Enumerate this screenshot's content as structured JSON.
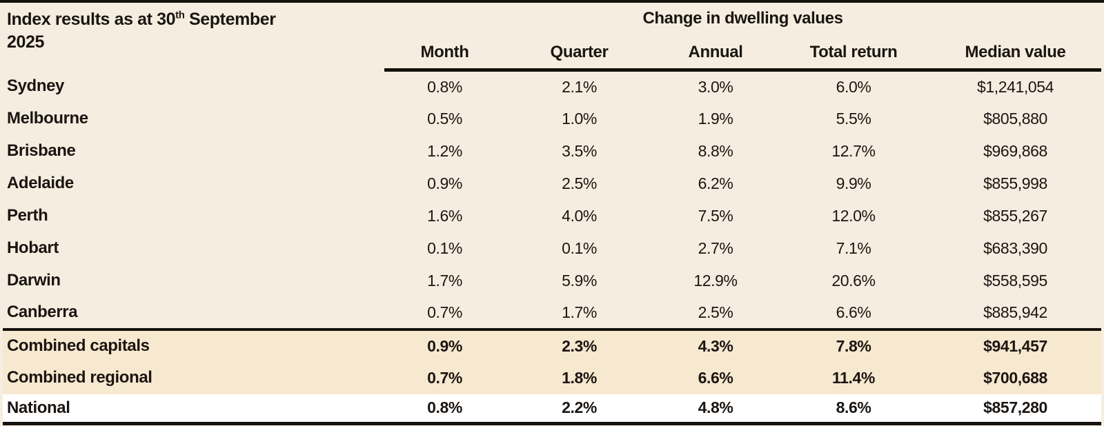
{
  "colors": {
    "page_background": "#f5eee0",
    "summary_row_background": "#f7e9d0",
    "national_row_background": "#ffffff",
    "ink": "#1b1511",
    "rule": "#14100c"
  },
  "table": {
    "title": {
      "line1_pre": "Index results as at 30",
      "line1_sup": "th",
      "line1_post": " September",
      "line2": "2025"
    },
    "group_header": "Change in dwelling values",
    "columns": [
      "Month",
      "Quarter",
      "Annual",
      "Total return",
      "Median value"
    ],
    "rows": [
      {
        "label": "Sydney",
        "type": "city",
        "cells": [
          "0.8%",
          "2.1%",
          "3.0%",
          "6.0%",
          "$1,241,054"
        ]
      },
      {
        "label": "Melbourne",
        "type": "city",
        "cells": [
          "0.5%",
          "1.0%",
          "1.9%",
          "5.5%",
          "$805,880"
        ]
      },
      {
        "label": "Brisbane",
        "type": "city",
        "cells": [
          "1.2%",
          "3.5%",
          "8.8%",
          "12.7%",
          "$969,868"
        ]
      },
      {
        "label": "Adelaide",
        "type": "city",
        "cells": [
          "0.9%",
          "2.5%",
          "6.2%",
          "9.9%",
          "$855,998"
        ]
      },
      {
        "label": "Perth",
        "type": "city",
        "cells": [
          "1.6%",
          "4.0%",
          "7.5%",
          "12.0%",
          "$855,267"
        ]
      },
      {
        "label": "Hobart",
        "type": "city",
        "cells": [
          "0.1%",
          "0.1%",
          "2.7%",
          "7.1%",
          "$683,390"
        ]
      },
      {
        "label": "Darwin",
        "type": "city",
        "cells": [
          "1.7%",
          "5.9%",
          "12.9%",
          "20.6%",
          "$558,595"
        ]
      },
      {
        "label": "Canberra",
        "type": "city",
        "cells": [
          "0.7%",
          "1.7%",
          "2.5%",
          "6.6%",
          "$885,942"
        ]
      },
      {
        "label": "Combined capitals",
        "type": "summary",
        "cells": [
          "0.9%",
          "2.3%",
          "4.3%",
          "7.8%",
          "$941,457"
        ]
      },
      {
        "label": "Combined regional",
        "type": "summary",
        "cells": [
          "0.7%",
          "1.8%",
          "6.6%",
          "11.4%",
          "$700,688"
        ]
      },
      {
        "label": "National",
        "type": "national",
        "cells": [
          "0.8%",
          "2.2%",
          "4.8%",
          "8.6%",
          "$857,280"
        ]
      }
    ]
  },
  "chart_data": {
    "type": "table",
    "title": "Index results as at 30th September 2025",
    "group_header": "Change in dwelling values",
    "columns": [
      "Month",
      "Quarter",
      "Annual",
      "Total return",
      "Median value"
    ],
    "rows": [
      {
        "label": "Sydney",
        "month_pct": 0.8,
        "quarter_pct": 2.1,
        "annual_pct": 3.0,
        "total_return_pct": 6.0,
        "median_value": 1241054
      },
      {
        "label": "Melbourne",
        "month_pct": 0.5,
        "quarter_pct": 1.0,
        "annual_pct": 1.9,
        "total_return_pct": 5.5,
        "median_value": 805880
      },
      {
        "label": "Brisbane",
        "month_pct": 1.2,
        "quarter_pct": 3.5,
        "annual_pct": 8.8,
        "total_return_pct": 12.7,
        "median_value": 969868
      },
      {
        "label": "Adelaide",
        "month_pct": 0.9,
        "quarter_pct": 2.5,
        "annual_pct": 6.2,
        "total_return_pct": 9.9,
        "median_value": 855998
      },
      {
        "label": "Perth",
        "month_pct": 1.6,
        "quarter_pct": 4.0,
        "annual_pct": 7.5,
        "total_return_pct": 12.0,
        "median_value": 855267
      },
      {
        "label": "Hobart",
        "month_pct": 0.1,
        "quarter_pct": 0.1,
        "annual_pct": 2.7,
        "total_return_pct": 7.1,
        "median_value": 683390
      },
      {
        "label": "Darwin",
        "month_pct": 1.7,
        "quarter_pct": 5.9,
        "annual_pct": 12.9,
        "total_return_pct": 20.6,
        "median_value": 558595
      },
      {
        "label": "Canberra",
        "month_pct": 0.7,
        "quarter_pct": 1.7,
        "annual_pct": 2.5,
        "total_return_pct": 6.6,
        "median_value": 885942
      },
      {
        "label": "Combined capitals",
        "month_pct": 0.9,
        "quarter_pct": 2.3,
        "annual_pct": 4.3,
        "total_return_pct": 7.8,
        "median_value": 941457
      },
      {
        "label": "Combined regional",
        "month_pct": 0.7,
        "quarter_pct": 1.8,
        "annual_pct": 6.6,
        "total_return_pct": 11.4,
        "median_value": 700688
      },
      {
        "label": "National",
        "month_pct": 0.8,
        "quarter_pct": 2.2,
        "annual_pct": 4.8,
        "total_return_pct": 8.6,
        "median_value": 857280
      }
    ]
  }
}
